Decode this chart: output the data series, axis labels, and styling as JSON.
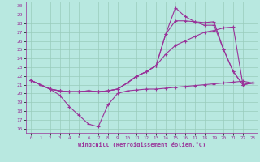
{
  "xlabel": "Windchill (Refroidissement éolien,°C)",
  "bg_color": "#b8e8e0",
  "line_color": "#993399",
  "grid_color": "#99ccbb",
  "x_ticks": [
    0,
    1,
    2,
    3,
    4,
    5,
    6,
    7,
    8,
    9,
    10,
    11,
    12,
    13,
    14,
    15,
    16,
    17,
    18,
    19,
    20,
    21,
    22,
    23
  ],
  "y_ticks": [
    16,
    17,
    18,
    19,
    20,
    21,
    22,
    23,
    24,
    25,
    26,
    27,
    28,
    29,
    30
  ],
  "xlim": [
    -0.5,
    23.5
  ],
  "ylim": [
    15.5,
    30.5
  ],
  "series1": [
    21.5,
    21.0,
    20.5,
    19.8,
    18.5,
    17.5,
    16.5,
    16.2,
    18.7,
    20.0,
    20.3,
    20.4,
    20.5,
    20.5,
    20.6,
    20.7,
    20.8,
    20.9,
    21.0,
    21.1,
    21.2,
    21.3,
    21.4,
    21.2
  ],
  "series2": [
    21.5,
    21.0,
    20.5,
    20.3,
    20.2,
    20.2,
    20.3,
    20.2,
    20.3,
    20.5,
    21.2,
    22.0,
    22.5,
    23.2,
    24.5,
    25.5,
    26.0,
    26.5,
    27.0,
    27.2,
    27.5,
    27.6,
    21.0,
    21.2
  ],
  "series3": [
    21.5,
    21.0,
    20.5,
    20.3,
    20.2,
    20.2,
    20.3,
    20.2,
    20.3,
    20.5,
    21.2,
    22.0,
    22.5,
    23.2,
    26.8,
    28.3,
    28.3,
    28.2,
    28.1,
    28.2,
    25.0,
    22.5,
    21.0,
    21.2
  ],
  "series4": [
    21.5,
    21.0,
    20.5,
    20.3,
    20.2,
    20.2,
    20.3,
    20.2,
    20.3,
    20.5,
    21.2,
    22.0,
    22.5,
    23.2,
    26.8,
    29.8,
    28.8,
    28.2,
    27.8,
    27.8,
    25.0,
    22.5,
    21.0,
    21.2
  ]
}
